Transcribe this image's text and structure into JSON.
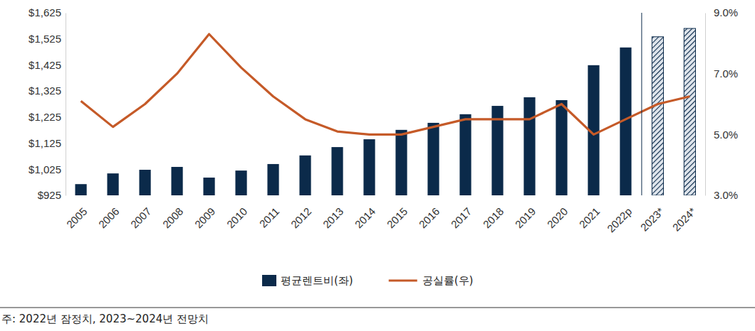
{
  "chart_data": {
    "type": "bar",
    "categories": [
      "2005",
      "2006",
      "2007",
      "2008",
      "2009",
      "2010",
      "2011",
      "2012",
      "2013",
      "2014",
      "2015",
      "2016",
      "2017",
      "2018",
      "2019",
      "2020",
      "2021",
      "2022p",
      "2023*",
      "2024*"
    ],
    "series": [
      {
        "name": "평균렌트비(좌)",
        "type": "bar",
        "color": "#0b2a4a",
        "colors": [
          "#0b2a4a",
          "#0b2a4a",
          "#0b2a4a",
          "#0b2a4a",
          "#0b2a4a",
          "#0b2a4a",
          "#0b2a4a",
          "#0b2a4a",
          "#0b2a4a",
          "#0b2a4a",
          "#0b2a4a",
          "#0b2a4a",
          "#0b2a4a",
          "#0b2a4a",
          "#0b2a4a",
          "#0b2a4a",
          "#0b2a4a",
          "#0b2a4a",
          "#dfe5ec",
          "#dfe5ec"
        ],
        "values": [
          968,
          1009,
          1023,
          1034,
          993,
          1020,
          1045,
          1078,
          1110,
          1140,
          1176,
          1203,
          1236,
          1268,
          1301,
          1290,
          1424,
          1492,
          1533,
          1565
        ]
      },
      {
        "name": "공실률(우)",
        "type": "line",
        "axis": "y2",
        "color": "#c55a28",
        "marker": "none",
        "line_style": "solid",
        "values": [
          6.1,
          5.25,
          6.0,
          7.0,
          8.3,
          7.2,
          6.25,
          5.5,
          5.1,
          5.0,
          5.0,
          5.25,
          5.5,
          5.5,
          5.5,
          6.0,
          5.0,
          5.5,
          6.0,
          6.25
        ]
      }
    ],
    "ylim": [
      925,
      1625
    ],
    "yticks": [
      {
        "value": 925,
        "label": "$925"
      },
      {
        "value": 1025,
        "label": "$1,025"
      },
      {
        "value": 1125,
        "label": "$1,125"
      },
      {
        "value": 1225,
        "label": "$1,225"
      },
      {
        "value": 1325,
        "label": "$1,325"
      },
      {
        "value": 1425,
        "label": "$1,425"
      },
      {
        "value": 1525,
        "label": "$1,525"
      },
      {
        "value": 1625,
        "label": "$1,625"
      }
    ],
    "y2lim": [
      3.0,
      9.0
    ],
    "y2ticks": [
      {
        "value": 3.0,
        "label": "3.0%"
      },
      {
        "value": 5.0,
        "label": "5.0%"
      },
      {
        "value": 7.0,
        "label": "7.0%"
      },
      {
        "value": 9.0,
        "label": "9.0%"
      }
    ],
    "annotations": [
      "주: 2022년 잠정치, 2023~2024년 전망치"
    ],
    "legend": "bottom",
    "grid": false
  }
}
